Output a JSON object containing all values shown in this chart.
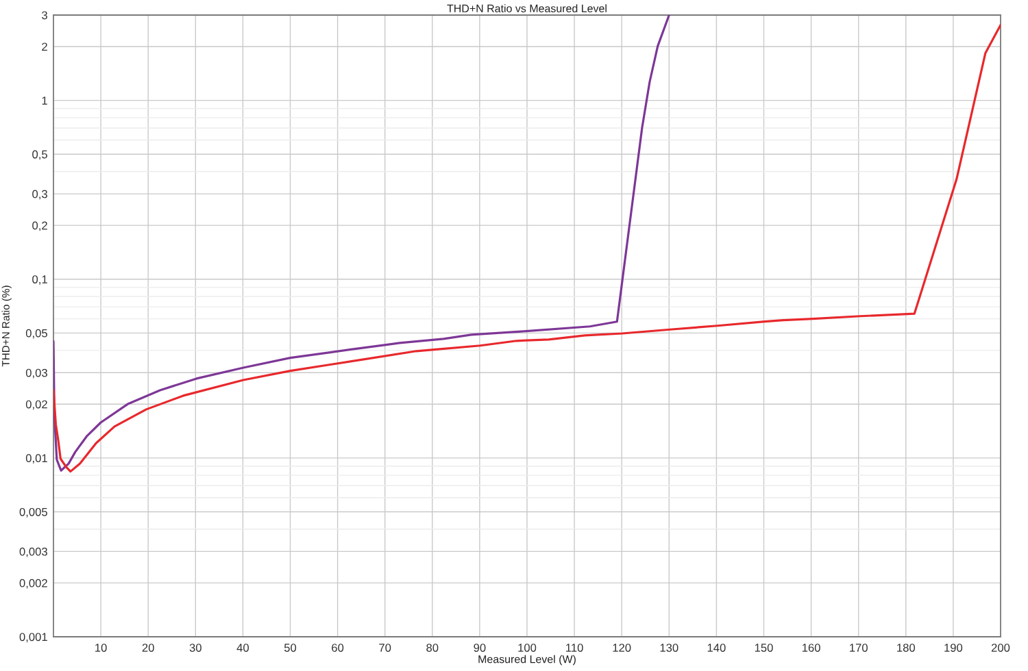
{
  "chart_data": {
    "type": "line",
    "title": "THD+N Ratio vs Measured Level",
    "xlabel": "Measured Level (W)",
    "ylabel": "THD+N Ratio (%)",
    "series": [
      {
        "color": "#7d3796",
        "x": [
          0,
          0.2,
          0.7,
          1.6,
          3.2,
          4.6,
          7.1,
          10,
          15.8,
          22.5,
          30.2,
          40.1,
          50,
          58.2,
          63.6,
          70.2,
          73.1,
          82.4,
          88.2,
          99.8,
          113.3,
          119,
          124.3,
          125.9,
          127.6,
          130
        ],
        "values": [
          0.045,
          0.0173,
          0.0098,
          0.0085,
          0.0093,
          0.0108,
          0.0133,
          0.0158,
          0.0201,
          0.0239,
          0.0278,
          0.032,
          0.0363,
          0.0389,
          0.0407,
          0.0429,
          0.044,
          0.0464,
          0.0489,
          0.0512,
          0.0544,
          0.0579,
          0.703,
          1.27,
          2.01,
          3
        ]
      },
      {
        "color": "#e8282c",
        "x": [
          0,
          0.5,
          1.0,
          1.5,
          2.7,
          3.6,
          5.6,
          9.0,
          12.9,
          19.6,
          27.4,
          40.1,
          50,
          58.2,
          65.5,
          76.6,
          90.1,
          97.8,
          104.6,
          112.2,
          120.1,
          130.2,
          140.2,
          150.2,
          154.1,
          160.3,
          170.3,
          181.8,
          190.7,
          196.8,
          200
        ],
        "values": [
          0.024,
          0.0154,
          0.0126,
          0.0099,
          0.0089,
          0.0084,
          0.0093,
          0.0121,
          0.015,
          0.0187,
          0.0223,
          0.0273,
          0.0307,
          0.0332,
          0.0356,
          0.0396,
          0.0425,
          0.0452,
          0.046,
          0.0485,
          0.0497,
          0.0523,
          0.0549,
          0.0579,
          0.059,
          0.06,
          0.0621,
          0.0641,
          0.362,
          1.84,
          2.64
        ]
      }
    ],
    "xlim": [
      0,
      200
    ],
    "xticks": [
      10,
      20,
      30,
      40,
      50,
      60,
      70,
      80,
      90,
      100,
      110,
      120,
      130,
      140,
      150,
      160,
      170,
      180,
      190,
      200
    ],
    "ylim": [
      0.001,
      3
    ],
    "yticks": [
      {
        "value": 0.001,
        "label": "0,001"
      },
      {
        "value": 0.002,
        "label": "0,002"
      },
      {
        "value": 0.003,
        "label": "0,003"
      },
      {
        "value": 0.004,
        "label": null
      },
      {
        "value": 0.005,
        "label": "0,005"
      },
      {
        "value": 0.006,
        "label": null
      },
      {
        "value": 0.007,
        "label": null
      },
      {
        "value": 0.008,
        "label": null
      },
      {
        "value": 0.009,
        "label": null
      },
      {
        "value": 0.01,
        "label": "0,01"
      },
      {
        "value": 0.02,
        "label": "0,02"
      },
      {
        "value": 0.03,
        "label": "0,03"
      },
      {
        "value": 0.04,
        "label": null
      },
      {
        "value": 0.05,
        "label": "0,05"
      },
      {
        "value": 0.06,
        "label": null
      },
      {
        "value": 0.07,
        "label": null
      },
      {
        "value": 0.08,
        "label": null
      },
      {
        "value": 0.09,
        "label": null
      },
      {
        "value": 0.1,
        "label": "0,1"
      },
      {
        "value": 0.2,
        "label": "0,2"
      },
      {
        "value": 0.3,
        "label": "0,3"
      },
      {
        "value": 0.4,
        "label": null
      },
      {
        "value": 0.5,
        "label": "0,5"
      },
      {
        "value": 0.6,
        "label": null
      },
      {
        "value": 0.7,
        "label": null
      },
      {
        "value": 0.8,
        "label": null
      },
      {
        "value": 0.9,
        "label": null
      },
      1,
      2,
      3
    ],
    "log": "y",
    "grid": true,
    "marker": "none",
    "line_style": "solid"
  }
}
